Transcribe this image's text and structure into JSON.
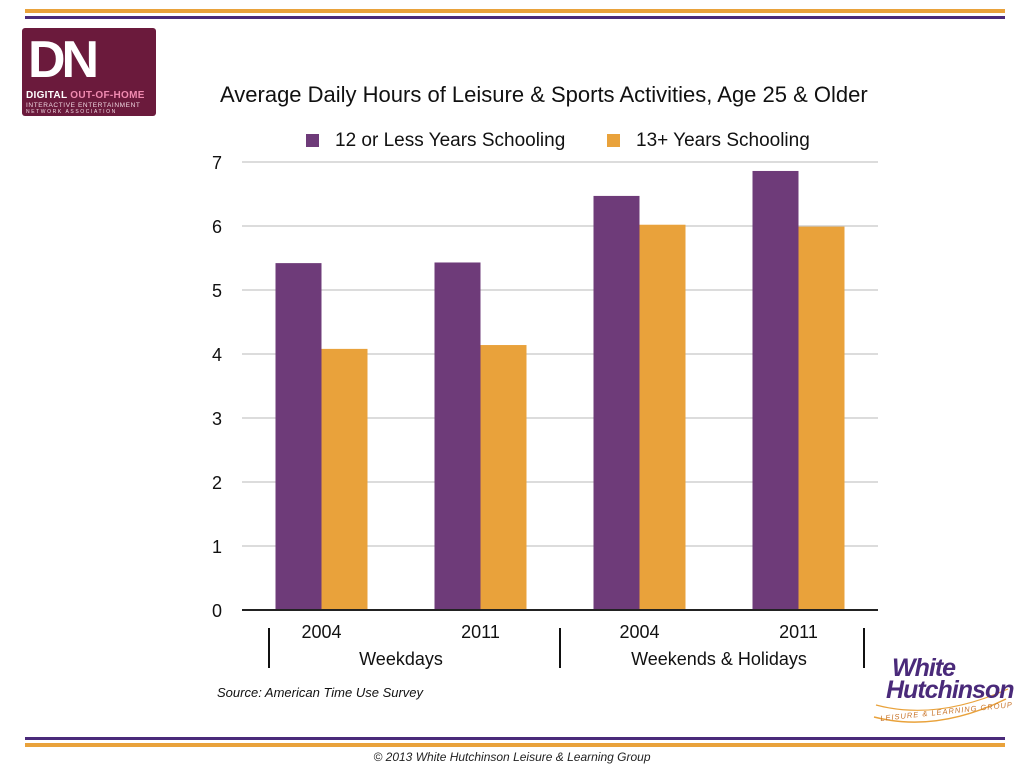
{
  "colors": {
    "purple": "#6e3b79",
    "orange": "#e9a23b",
    "rule_orange": "#e9a23b",
    "rule_purple": "#4a2a7a",
    "logo_bg": "#6b1a3c"
  },
  "logo": {
    "mark": "DN",
    "line1_a": "DIGITAL",
    "line1_b": "OUT-OF-HOME",
    "line2": "INTERACTIVE ENTERTAINMENT",
    "line3": "NETWORK ASSOCIATION"
  },
  "chart_data": {
    "type": "bar",
    "title": "Average Daily Hours of Leisure & Sports Activities, Age 25 & Older",
    "categories": [
      "2004",
      "2011",
      "2004",
      "2011"
    ],
    "groups": [
      "Weekdays",
      "Weekends & Holidays"
    ],
    "series": [
      {
        "name": "12 or Less Years Schooling",
        "color": "#6e3b79",
        "values": [
          5.42,
          5.43,
          6.47,
          6.86
        ]
      },
      {
        "name": "13+ Years Schooling",
        "color": "#e9a23b",
        "values": [
          4.08,
          4.14,
          6.02,
          5.99
        ]
      }
    ],
    "ylim": [
      0,
      7
    ],
    "yticks": [
      0,
      1,
      2,
      3,
      4,
      5,
      6,
      7
    ],
    "grid": true,
    "legend": "top",
    "source": "Source: American Time Use Survey"
  },
  "brand": {
    "line1": "White",
    "line2": "Hutchinson",
    "line3": "LEISURE & LEARNING GROUP"
  },
  "footer": "© 2013 White Hutchinson Leisure & Learning Group"
}
